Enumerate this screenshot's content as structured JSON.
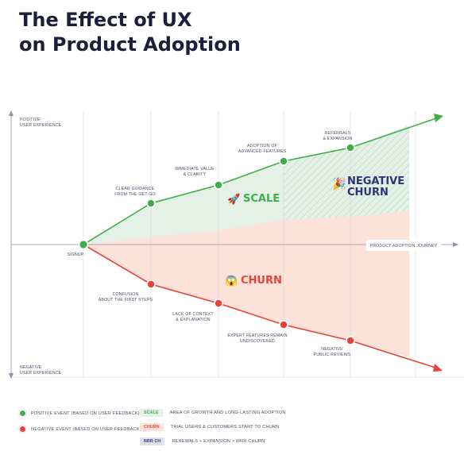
{
  "title": {
    "line1": "The Effect of UX",
    "line2": "on Product Adoption"
  },
  "axis": {
    "y_top": [
      "POSITIVE",
      "USER EXPERIENCE"
    ],
    "y_bottom": [
      "NEGATIVE",
      "USER EXPERIENCE"
    ],
    "x_label": "PRODUCT ADOPTION  JOURNEY"
  },
  "start": {
    "label": "SIGNUP"
  },
  "positive_events": [
    {
      "lines": [
        "CLEAR GUIDANCE",
        "FROM THE GET-GO"
      ]
    },
    {
      "lines": [
        "IMMEDIATE VALUE",
        "& CLARITY"
      ]
    },
    {
      "lines": [
        "ADOPTION OF",
        "ADVANCED FEATURES"
      ]
    },
    {
      "lines": [
        "REFERRALS",
        "& EXPANSION"
      ]
    }
  ],
  "negative_events": [
    {
      "lines": [
        "CONFUSION",
        "ABOUT THE FIRST STEPS"
      ]
    },
    {
      "lines": [
        "LACK OF CONTEXT",
        "& EXPLANATION"
      ]
    },
    {
      "lines": [
        "EXPERT FEATURES REMAIN",
        "UNDISCOVERED"
      ]
    },
    {
      "lines": [
        "NEGATIVE",
        "PUBLIC REVIEWS"
      ]
    }
  ],
  "areas": {
    "scale": {
      "label": "SCALE",
      "emoji": "🚀"
    },
    "churn": {
      "label": "CHURN",
      "emoji": "😱"
    },
    "negative_churn": {
      "line1": "NEGATIVE",
      "line2": "CHURN",
      "emoji": "🎉"
    }
  },
  "legend": {
    "positive_event": "POSITIVE EVENT (BASED ON USER FEEDBACK)",
    "negative_event": "NEGATIVE EVENT (BASED ON USER FEEDBACK)",
    "scale_tag": "SCALE",
    "scale_desc": "AREA OF GROWTH AND LONG-LASTING ADOPTION",
    "churn_tag": "CHURN",
    "churn_desc": "TRIAL USERS & CUSTOMERS START TO CHURN",
    "nrr_tag": "NRR CH",
    "nrr_desc": "RENEWALS + EXPANSION > MRR CHURN"
  },
  "colors": {
    "positive": "#3fae49",
    "negative": "#e84238",
    "scale_fill": "#e3f1e6",
    "churn_fill": "#fce2d9",
    "nrr_fill": "#dde1ea",
    "title": "#1c1f3a",
    "negative_churn_text": "#2d3374"
  }
}
